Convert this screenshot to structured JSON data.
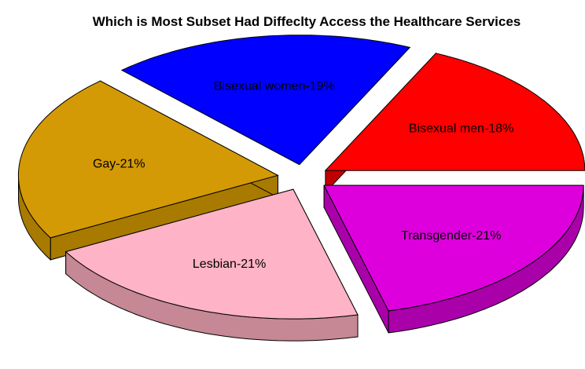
{
  "chart_data": {
    "type": "pie",
    "title": "Which is Most Subset Had Diffeclty Access the Healthcare Services",
    "slices": [
      {
        "name": "Bisexual men",
        "label": "Bisexual men-18%",
        "value": 18,
        "color": "#ff0000",
        "side_color": "#c00000"
      },
      {
        "name": "Bisexual women",
        "label": "Bisexual women-19%",
        "value": 19,
        "color": "#0000ff",
        "side_color": "#0000c8"
      },
      {
        "name": "Gay",
        "label": "Gay-21%",
        "value": 21,
        "color": "#d49a05",
        "side_color": "#a87a00"
      },
      {
        "name": "Lesbian",
        "label": "Lesbian-21%",
        "value": 21,
        "color": "#ffb3c6",
        "side_color": "#c58894"
      },
      {
        "name": "Transgender",
        "label": "Transgender-21%",
        "value": 21,
        "color": "#dd00dd",
        "side_color": "#aa00aa"
      }
    ],
    "style": "3d-exploded-pie"
  }
}
